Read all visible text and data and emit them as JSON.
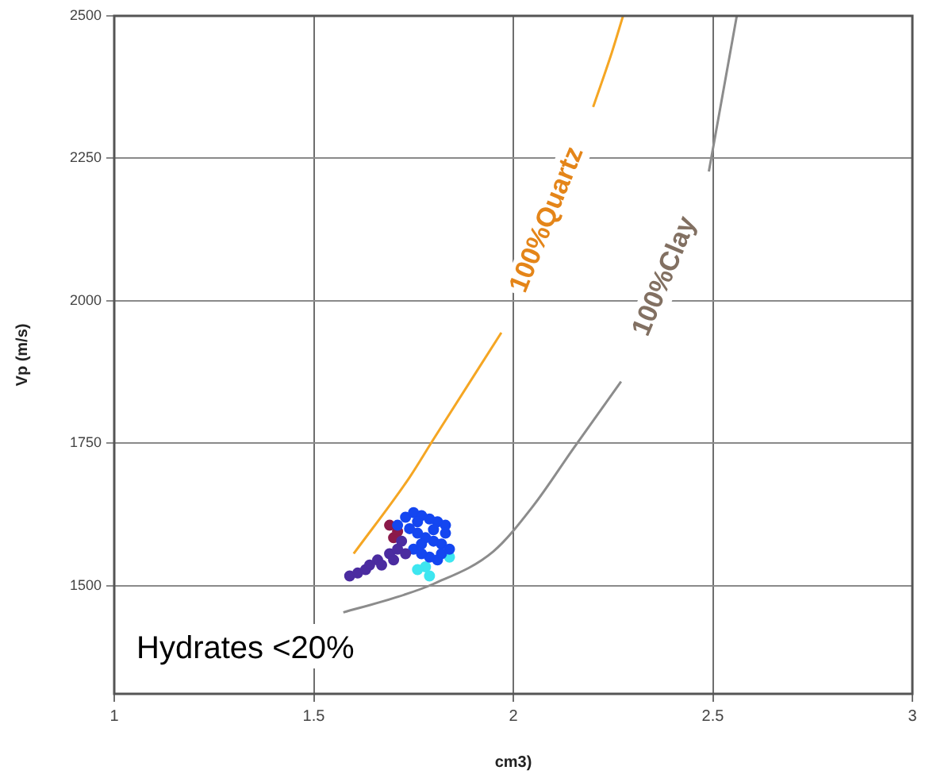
{
  "chart_data": {
    "type": "scatter",
    "xlabel": "cm3)",
    "ylabel": "Vp (m/s)",
    "xlim": [
      1,
      3
    ],
    "xticks": [
      1,
      1.5,
      2,
      2.5,
      3
    ],
    "ylim": [
      1310,
      2500
    ],
    "yticks": [
      1500,
      1750,
      2000,
      2250,
      2500
    ],
    "grid": true,
    "marker": "circle",
    "series": [
      {
        "type": "line",
        "marker": "none",
        "color": "#f5a623",
        "x": [
          1.6,
          1.74,
          1.8,
          1.97,
          2.1,
          2.2,
          2.247,
          2.275
        ],
        "values": [
          1556,
          1690,
          1757,
          1944,
          null,
          2340,
          2436,
          2500
        ]
      },
      {
        "type": "line",
        "marker": "none",
        "color": "#8c8c8c",
        "x": [
          1.574,
          1.7,
          1.8,
          1.95,
          2.05,
          2.15,
          2.27,
          2.4,
          2.49,
          2.56
        ],
        "values": [
          1453,
          1478,
          1503,
          1560,
          1640,
          1740,
          1858,
          null,
          2227,
          2500
        ]
      },
      {
        "color": "#4b2ca0",
        "x": [
          1.59,
          1.61,
          1.63,
          1.66,
          1.69,
          1.71,
          1.67,
          1.64,
          1.7,
          1.72,
          1.73
        ],
        "values": [
          1517,
          1522,
          1528,
          1545,
          1556,
          1564,
          1536,
          1536,
          1545,
          1578,
          1556
        ]
      },
      {
        "color": "#1446f0",
        "x": [
          1.71,
          1.73,
          1.75,
          1.77,
          1.79,
          1.81,
          1.83,
          1.74,
          1.76,
          1.78,
          1.8,
          1.82,
          1.84,
          1.75,
          1.77,
          1.79,
          1.81,
          1.83,
          1.76,
          1.8,
          1.82,
          1.77
        ],
        "values": [
          1606,
          1620,
          1628,
          1623,
          1617,
          1612,
          1606,
          1600,
          1592,
          1584,
          1578,
          1573,
          1564,
          1564,
          1556,
          1550,
          1545,
          1592,
          1612,
          1598,
          1556,
          1573
        ]
      },
      {
        "color": "#3ee6f0",
        "x": [
          1.78,
          1.84,
          1.79,
          1.76
        ],
        "values": [
          1533,
          1550,
          1517,
          1528
        ]
      },
      {
        "color": "#8b1a4a",
        "x": [
          1.69,
          1.7,
          1.71
        ],
        "values": [
          1606,
          1584,
          1595
        ]
      }
    ],
    "annotations": [
      "100%Quartz",
      "100%Clay",
      "Hydrates <20%"
    ]
  }
}
